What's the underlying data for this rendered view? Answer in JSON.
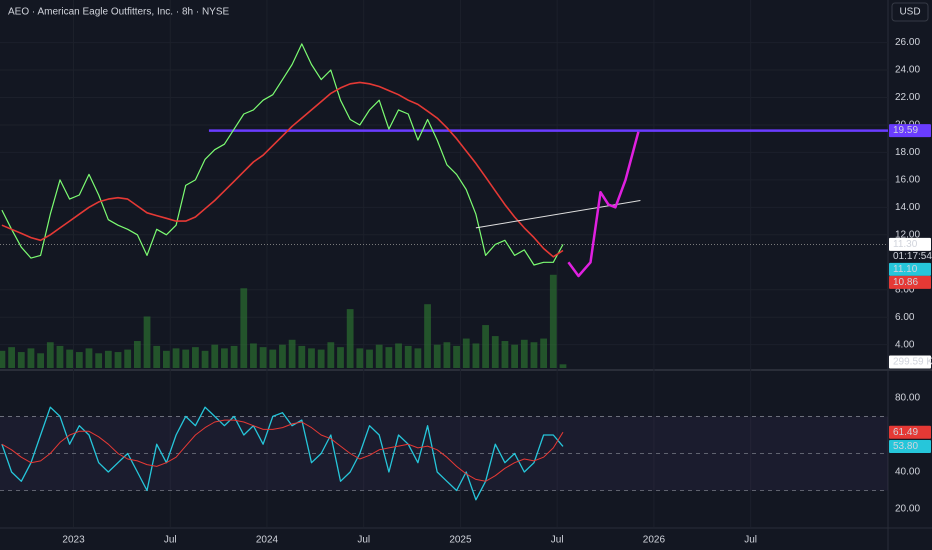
{
  "chart_data": {
    "type": "line",
    "title": "AEO · American Eagle Outfitters, Inc. · 8h · NYSE",
    "currency": "USD",
    "x": [
      2022.63,
      2022.68,
      2022.73,
      2022.78,
      2022.83,
      2022.88,
      2022.93,
      2022.98,
      2023.03,
      2023.08,
      2023.13,
      2023.18,
      2023.23,
      2023.28,
      2023.33,
      2023.38,
      2023.43,
      2023.48,
      2023.53,
      2023.58,
      2023.63,
      2023.68,
      2023.73,
      2023.78,
      2023.83,
      2023.88,
      2023.93,
      2023.98,
      2024.03,
      2024.08,
      2024.13,
      2024.18,
      2024.23,
      2024.28,
      2024.33,
      2024.38,
      2024.43,
      2024.48,
      2024.53,
      2024.58,
      2024.63,
      2024.68,
      2024.73,
      2024.78,
      2024.83,
      2024.88,
      2024.93,
      2024.98,
      2025.03,
      2025.08,
      2025.13,
      2025.18,
      2025.23,
      2025.28,
      2025.33,
      2025.38,
      2025.43,
      2025.48,
      2025.53
    ],
    "xlim": [
      2022.62,
      2027.21
    ],
    "xticks": [
      {
        "value": 2023,
        "label": "2023"
      },
      {
        "value": 2023.5,
        "label": "Jul"
      },
      {
        "value": 2024,
        "label": "2024"
      },
      {
        "value": 2024.5,
        "label": "Jul"
      },
      {
        "value": 2025,
        "label": "2025"
      },
      {
        "value": 2025.5,
        "label": "Jul"
      },
      {
        "value": 2026,
        "label": "2026"
      },
      {
        "value": 2026.5,
        "label": "Jul"
      }
    ],
    "ylim": [
      2.3,
      29.1
    ],
    "yticks": [
      {
        "value": 4,
        "label": "4.00"
      },
      {
        "value": 6,
        "label": "6.00"
      },
      {
        "value": 8,
        "label": "8.00"
      },
      {
        "value": 12,
        "label": "12.00"
      },
      {
        "value": 14,
        "label": "14.00"
      },
      {
        "value": 16,
        "label": "16.00"
      },
      {
        "value": 18,
        "label": "18.00"
      },
      {
        "value": 20,
        "label": "20.00"
      },
      {
        "value": 22,
        "label": "22.00"
      },
      {
        "value": 24,
        "label": "24.00"
      },
      {
        "value": 26,
        "label": "26.00"
      }
    ],
    "grid": true,
    "series": [
      {
        "color": "#7cfc72",
        "values": [
          13.8,
          12.4,
          11.1,
          10.3,
          10.5,
          13.5,
          16.0,
          14.6,
          14.9,
          16.4,
          14.9,
          13.1,
          12.7,
          12.4,
          12.0,
          10.5,
          12.4,
          12.0,
          12.7,
          15.6,
          16.0,
          17.5,
          18.2,
          18.6,
          19.7,
          20.8,
          21.1,
          21.8,
          22.2,
          23.3,
          24.4,
          25.9,
          24.4,
          23.3,
          24.0,
          21.8,
          20.4,
          20.0,
          21.1,
          21.8,
          19.7,
          21.1,
          20.8,
          18.9,
          20.4,
          18.9,
          17.1,
          16.4,
          15.3,
          13.5,
          10.5,
          11.3,
          11.6,
          10.5,
          10.9,
          9.8,
          10.0,
          10.0,
          11.3
        ]
      },
      {
        "color": "#e53935",
        "values": [
          12.7,
          12.4,
          12.1,
          11.8,
          11.6,
          12.0,
          12.5,
          13.0,
          13.5,
          14.0,
          14.4,
          14.6,
          14.7,
          14.6,
          14.1,
          13.6,
          13.4,
          13.2,
          13.0,
          13.0,
          13.3,
          13.9,
          14.5,
          15.2,
          15.9,
          16.6,
          17.3,
          17.8,
          18.5,
          19.2,
          19.9,
          20.5,
          21.1,
          21.7,
          22.3,
          22.7,
          23.0,
          23.1,
          23.0,
          22.8,
          22.5,
          22.2,
          21.8,
          21.5,
          21.0,
          20.5,
          19.8,
          19.0,
          18.1,
          17.2,
          16.2,
          15.2,
          14.2,
          13.3,
          12.5,
          11.8,
          11.0,
          10.4,
          10.86
        ]
      }
    ],
    "last_price": {
      "value": 11.3,
      "label": "11.30"
    },
    "countdown": "01:17:54",
    "price_labels": [
      {
        "value": 11.1,
        "label": "11.10",
        "color": "#26c6da"
      },
      {
        "value": 10.86,
        "label": "10.86",
        "color": "#e53935"
      }
    ],
    "hline": {
      "value": 19.59,
      "label": "19.59",
      "color": "#6a3cff",
      "start": 2023.7
    },
    "trendline": {
      "x": [
        2025.08,
        2025.93
      ],
      "values": [
        12.5,
        14.5
      ],
      "color": "#e0e0e0"
    },
    "projection": {
      "x": [
        2025.558,
        2025.61,
        2025.672,
        2025.724,
        2025.765,
        2025.801,
        2025.853,
        2025.92
      ],
      "values": [
        10.0,
        9.0,
        10.0,
        15.1,
        14.2,
        14.0,
        16.0,
        19.5
      ],
      "color": "#e020e0"
    },
    "volume": {
      "color": "#2e7d32",
      "ylim": [
        0,
        30000
      ],
      "values": [
        1400,
        1700,
        1300,
        1600,
        1200,
        2100,
        1800,
        1500,
        1300,
        1600,
        1200,
        1400,
        1300,
        1500,
        2200,
        4200,
        1800,
        1400,
        1600,
        1500,
        1700,
        1400,
        1900,
        1600,
        1800,
        6500,
        2000,
        1700,
        1500,
        1900,
        2300,
        1800,
        1600,
        1500,
        2100,
        1700,
        4800,
        1600,
        1500,
        1900,
        1700,
        2000,
        1800,
        1600,
        5200,
        1900,
        2100,
        1800,
        2400,
        2000,
        3500,
        2600,
        2200,
        1900,
        2300,
        2100,
        2400,
        7600,
        299.59
      ],
      "last_label": "299.59 K"
    },
    "rsi": {
      "ylim": [
        10.3,
        94
      ],
      "yticks": [
        {
          "value": 20,
          "label": "20.00"
        },
        {
          "value": 40,
          "label": "40.00"
        },
        {
          "value": 80,
          "label": "80.00"
        }
      ],
      "levels": [
        70,
        50,
        30
      ],
      "series": [
        {
          "color": "#26c6da",
          "values": [
            55,
            40,
            35,
            45,
            60,
            75,
            70,
            55,
            65,
            60,
            45,
            40,
            45,
            50,
            40,
            30,
            55,
            45,
            60,
            70,
            65,
            75,
            70,
            65,
            70,
            60,
            65,
            55,
            70,
            72,
            65,
            68,
            45,
            50,
            60,
            35,
            40,
            50,
            65,
            60,
            40,
            60,
            55,
            45,
            65,
            40,
            35,
            30,
            40,
            25,
            35,
            55,
            45,
            50,
            40,
            45,
            60,
            60,
            53.8
          ],
          "value_label": "53.80"
        },
        {
          "color": "#e53935",
          "values": [
            55,
            52,
            48,
            45,
            46,
            50,
            56,
            60,
            62,
            62,
            59,
            55,
            50,
            47,
            46,
            44,
            43,
            45,
            48,
            54,
            60,
            64,
            67,
            68,
            68,
            67,
            65,
            63,
            63,
            64,
            66,
            67,
            64,
            60,
            58,
            54,
            50,
            47,
            49,
            52,
            53,
            54,
            55,
            53,
            54,
            52,
            48,
            43,
            39,
            36,
            35,
            38,
            42,
            45,
            47,
            46,
            48,
            53,
            61.49
          ],
          "value_label": "61.49"
        }
      ]
    }
  }
}
